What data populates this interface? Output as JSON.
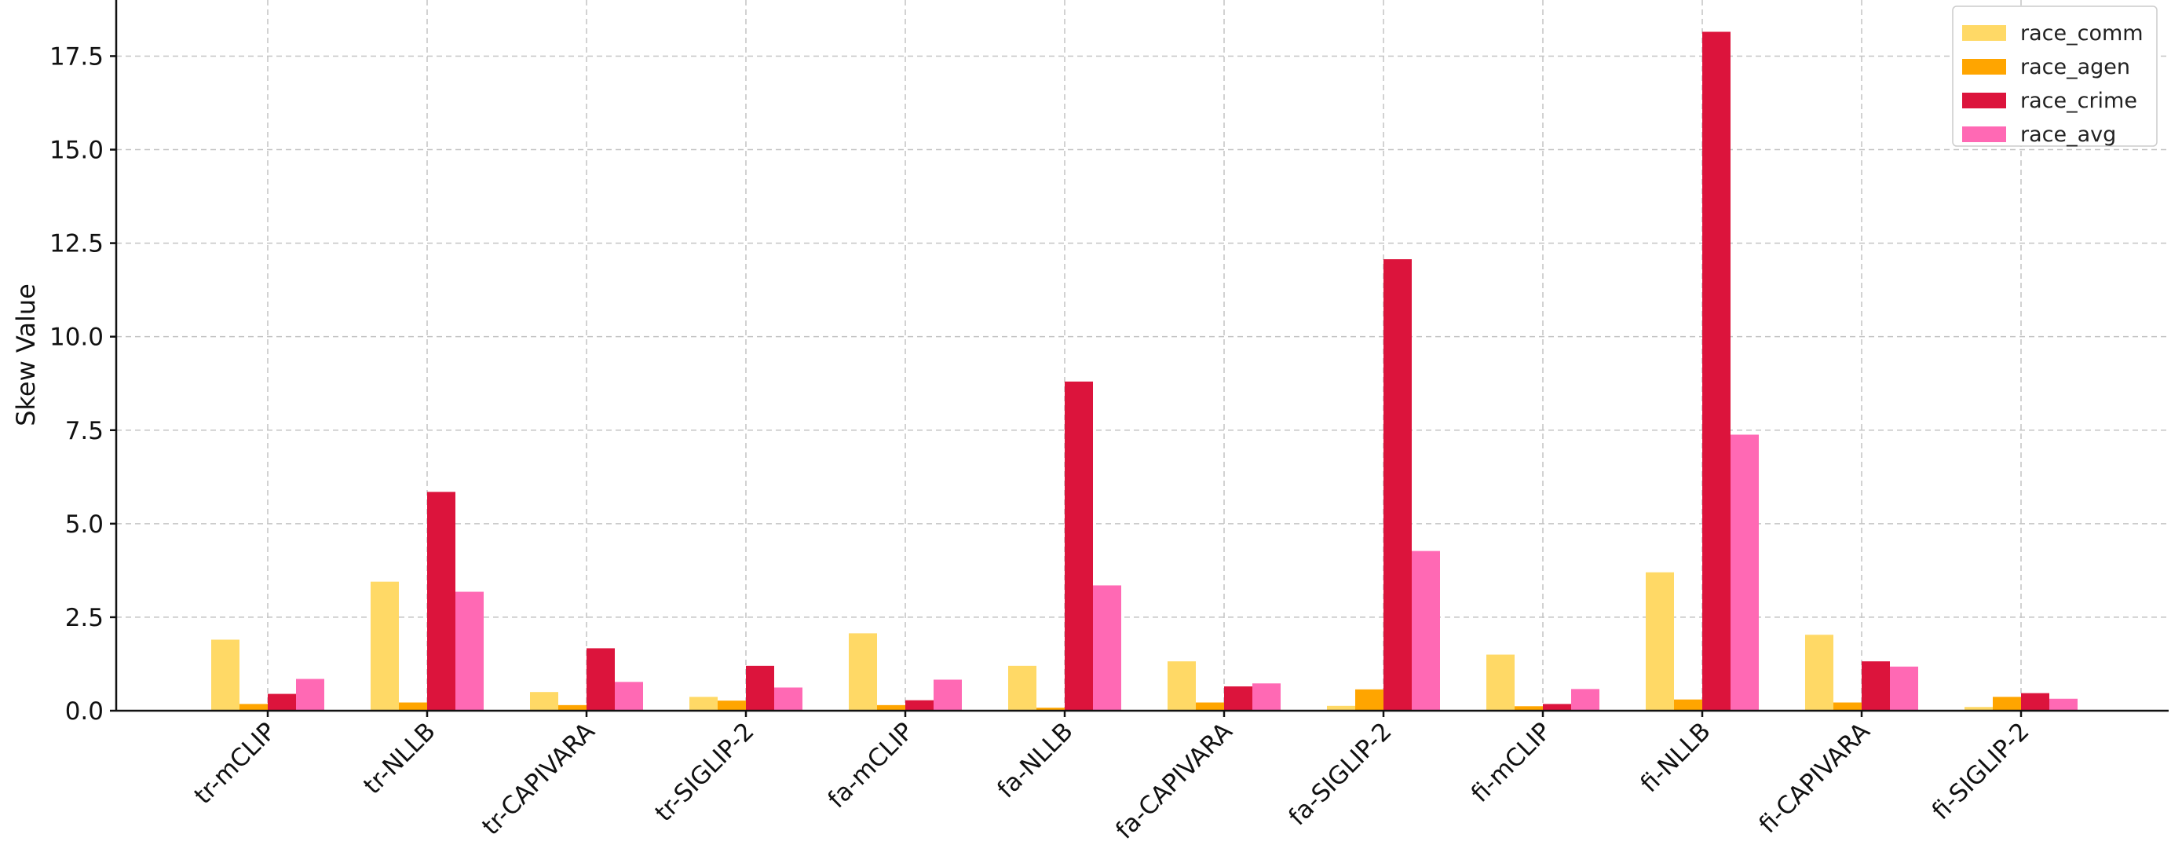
{
  "chart_data": {
    "type": "bar",
    "title": "",
    "xlabel": "",
    "ylabel": "Skew Value",
    "ylim": [
      0,
      19
    ],
    "yticks": [
      "0.0",
      "2.5",
      "5.0",
      "7.5",
      "10.0",
      "12.5",
      "15.0",
      "17.5"
    ],
    "grid": true,
    "legend_position": "top-right",
    "categories": [
      "tr-mCLIP",
      "tr-NLLB",
      "tr-CAPIVARA",
      "tr-SIGLIP-2",
      "fa-mCLIP",
      "fa-NLLB",
      "fa-CAPIVARA",
      "fa-SIGLIP-2",
      "fi-mCLIP",
      "fi-NLLB",
      "fi-CAPIVARA",
      "fi-SIGLIP-2"
    ],
    "series": [
      {
        "name": "race_comm",
        "color": "#FFD966",
        "values": [
          1.9,
          3.45,
          0.5,
          0.37,
          2.07,
          1.2,
          1.32,
          0.13,
          1.5,
          3.7,
          2.03,
          0.1
        ]
      },
      {
        "name": "race_agen",
        "color": "#FFA500",
        "values": [
          0.18,
          0.22,
          0.15,
          0.27,
          0.15,
          0.08,
          0.22,
          0.57,
          0.12,
          0.3,
          0.22,
          0.37
        ]
      },
      {
        "name": "race_crime",
        "color": "#DC143C",
        "values": [
          0.45,
          5.85,
          1.67,
          1.2,
          0.28,
          8.8,
          0.65,
          12.07,
          0.18,
          18.15,
          1.32,
          0.47
        ]
      },
      {
        "name": "race_avg",
        "color": "#FF69B4",
        "values": [
          0.85,
          3.18,
          0.77,
          0.62,
          0.83,
          3.35,
          0.73,
          4.27,
          0.58,
          7.38,
          1.18,
          0.32
        ]
      }
    ]
  }
}
